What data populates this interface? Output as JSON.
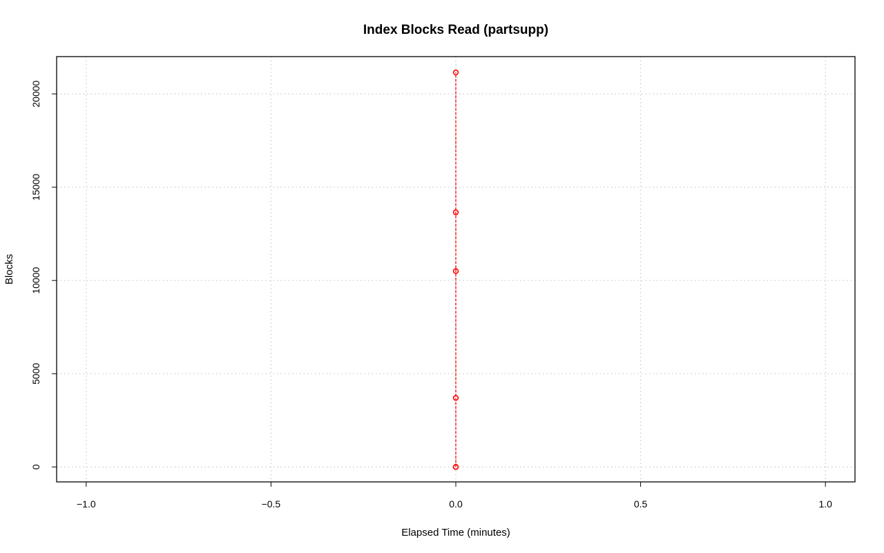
{
  "chart_data": {
    "type": "line",
    "title": "Index Blocks Read (partsupp)",
    "xlabel": "Elapsed Time (minutes)",
    "ylabel": "Blocks",
    "xlim": [
      -1.08,
      1.08
    ],
    "ylim": [
      -800,
      22000
    ],
    "x_ticks": [
      -1.0,
      -0.5,
      0.0,
      0.5,
      1.0
    ],
    "x_tick_labels": [
      "−1.0",
      "−0.5",
      "0.0",
      "0.5",
      "1.0"
    ],
    "y_ticks": [
      0,
      5000,
      10000,
      15000,
      20000
    ],
    "y_tick_labels": [
      "0",
      "5000",
      "10000",
      "15000",
      "20000"
    ],
    "grid": true,
    "series": [
      {
        "color": "#ff0000",
        "line_style": "dashed",
        "marker": "open-circle",
        "x": [
          0,
          0,
          0,
          0,
          0,
          0
        ],
        "y": [
          0,
          0,
          3700,
          10500,
          13650,
          21150
        ]
      }
    ]
  }
}
